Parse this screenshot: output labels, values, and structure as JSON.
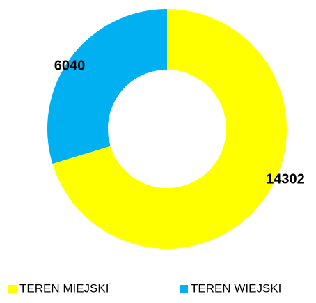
{
  "chart_data": {
    "type": "donut",
    "categories": [
      "TEREN MIEJSKI",
      "TEREN WIEJSKI"
    ],
    "values": [
      14302,
      6040
    ],
    "colors": [
      "#ffff00",
      "#00b0f0"
    ]
  }
}
